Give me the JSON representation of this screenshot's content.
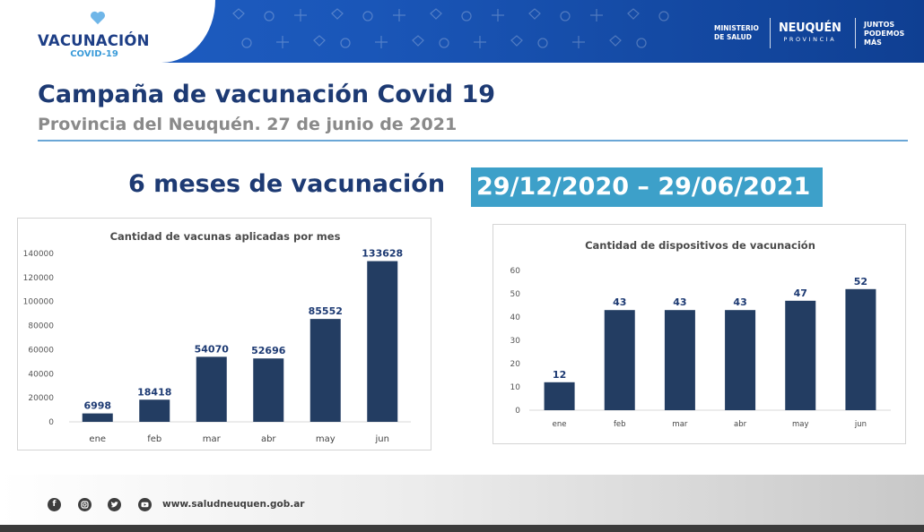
{
  "header": {
    "logo_title": "VACUNACIÓN",
    "logo_subtitle": "COVID-19",
    "ministerio": [
      "MINISTERIO",
      "DE SALUD"
    ],
    "neuquen": "NEUQUÉN",
    "provincia": "PROVINCIA",
    "juntos": [
      "JUNTOS",
      "PODEMOS",
      "MÁS"
    ],
    "colors": {
      "header_blue": "#1a56b8",
      "logo_navy": "#1d3e86",
      "logo_cyan": "#3a9bd9"
    }
  },
  "title": "Campaña de vacunación Covid 19",
  "subtitle": "Provincia del Neuquén. 27 de junio de 2021",
  "headline": {
    "text": "6 meses de vacunación",
    "dates": "29/12/2020 – 29/06/2021",
    "highlight_color": "#3da0c9"
  },
  "chart_data": [
    {
      "type": "bar",
      "title": "Cantidad de vacunas aplicadas por mes",
      "categories": [
        "ene",
        "feb",
        "mar",
        "abr",
        "may",
        "jun"
      ],
      "values": [
        6998,
        18418,
        54070,
        52696,
        85552,
        133628
      ],
      "data_labels": [
        "6998",
        "18418",
        "54070",
        "52696",
        "85552",
        "133628"
      ],
      "yticks": [
        "0",
        "20000",
        "40000",
        "60000",
        "80000",
        "100000",
        "120000",
        "140000"
      ],
      "ylim": [
        0,
        140000
      ],
      "grid": false,
      "bar_color": "#233d62"
    },
    {
      "type": "bar",
      "title": "Cantidad de dispositivos de vacunación",
      "categories": [
        "ene",
        "feb",
        "mar",
        "abr",
        "may",
        "jun"
      ],
      "values": [
        12,
        43,
        43,
        43,
        47,
        52
      ],
      "data_labels": [
        "12",
        "43",
        "43",
        "43",
        "47",
        "52"
      ],
      "yticks": [
        "0",
        "10",
        "20",
        "30",
        "40",
        "50",
        "60"
      ],
      "ylim": [
        0,
        60
      ],
      "grid": false,
      "bar_color": "#233d62"
    }
  ],
  "footer": {
    "social_icons": [
      "facebook-icon",
      "instagram-icon",
      "twitter-icon",
      "youtube-icon"
    ],
    "url": "www.saludneuquen.gob.ar"
  }
}
